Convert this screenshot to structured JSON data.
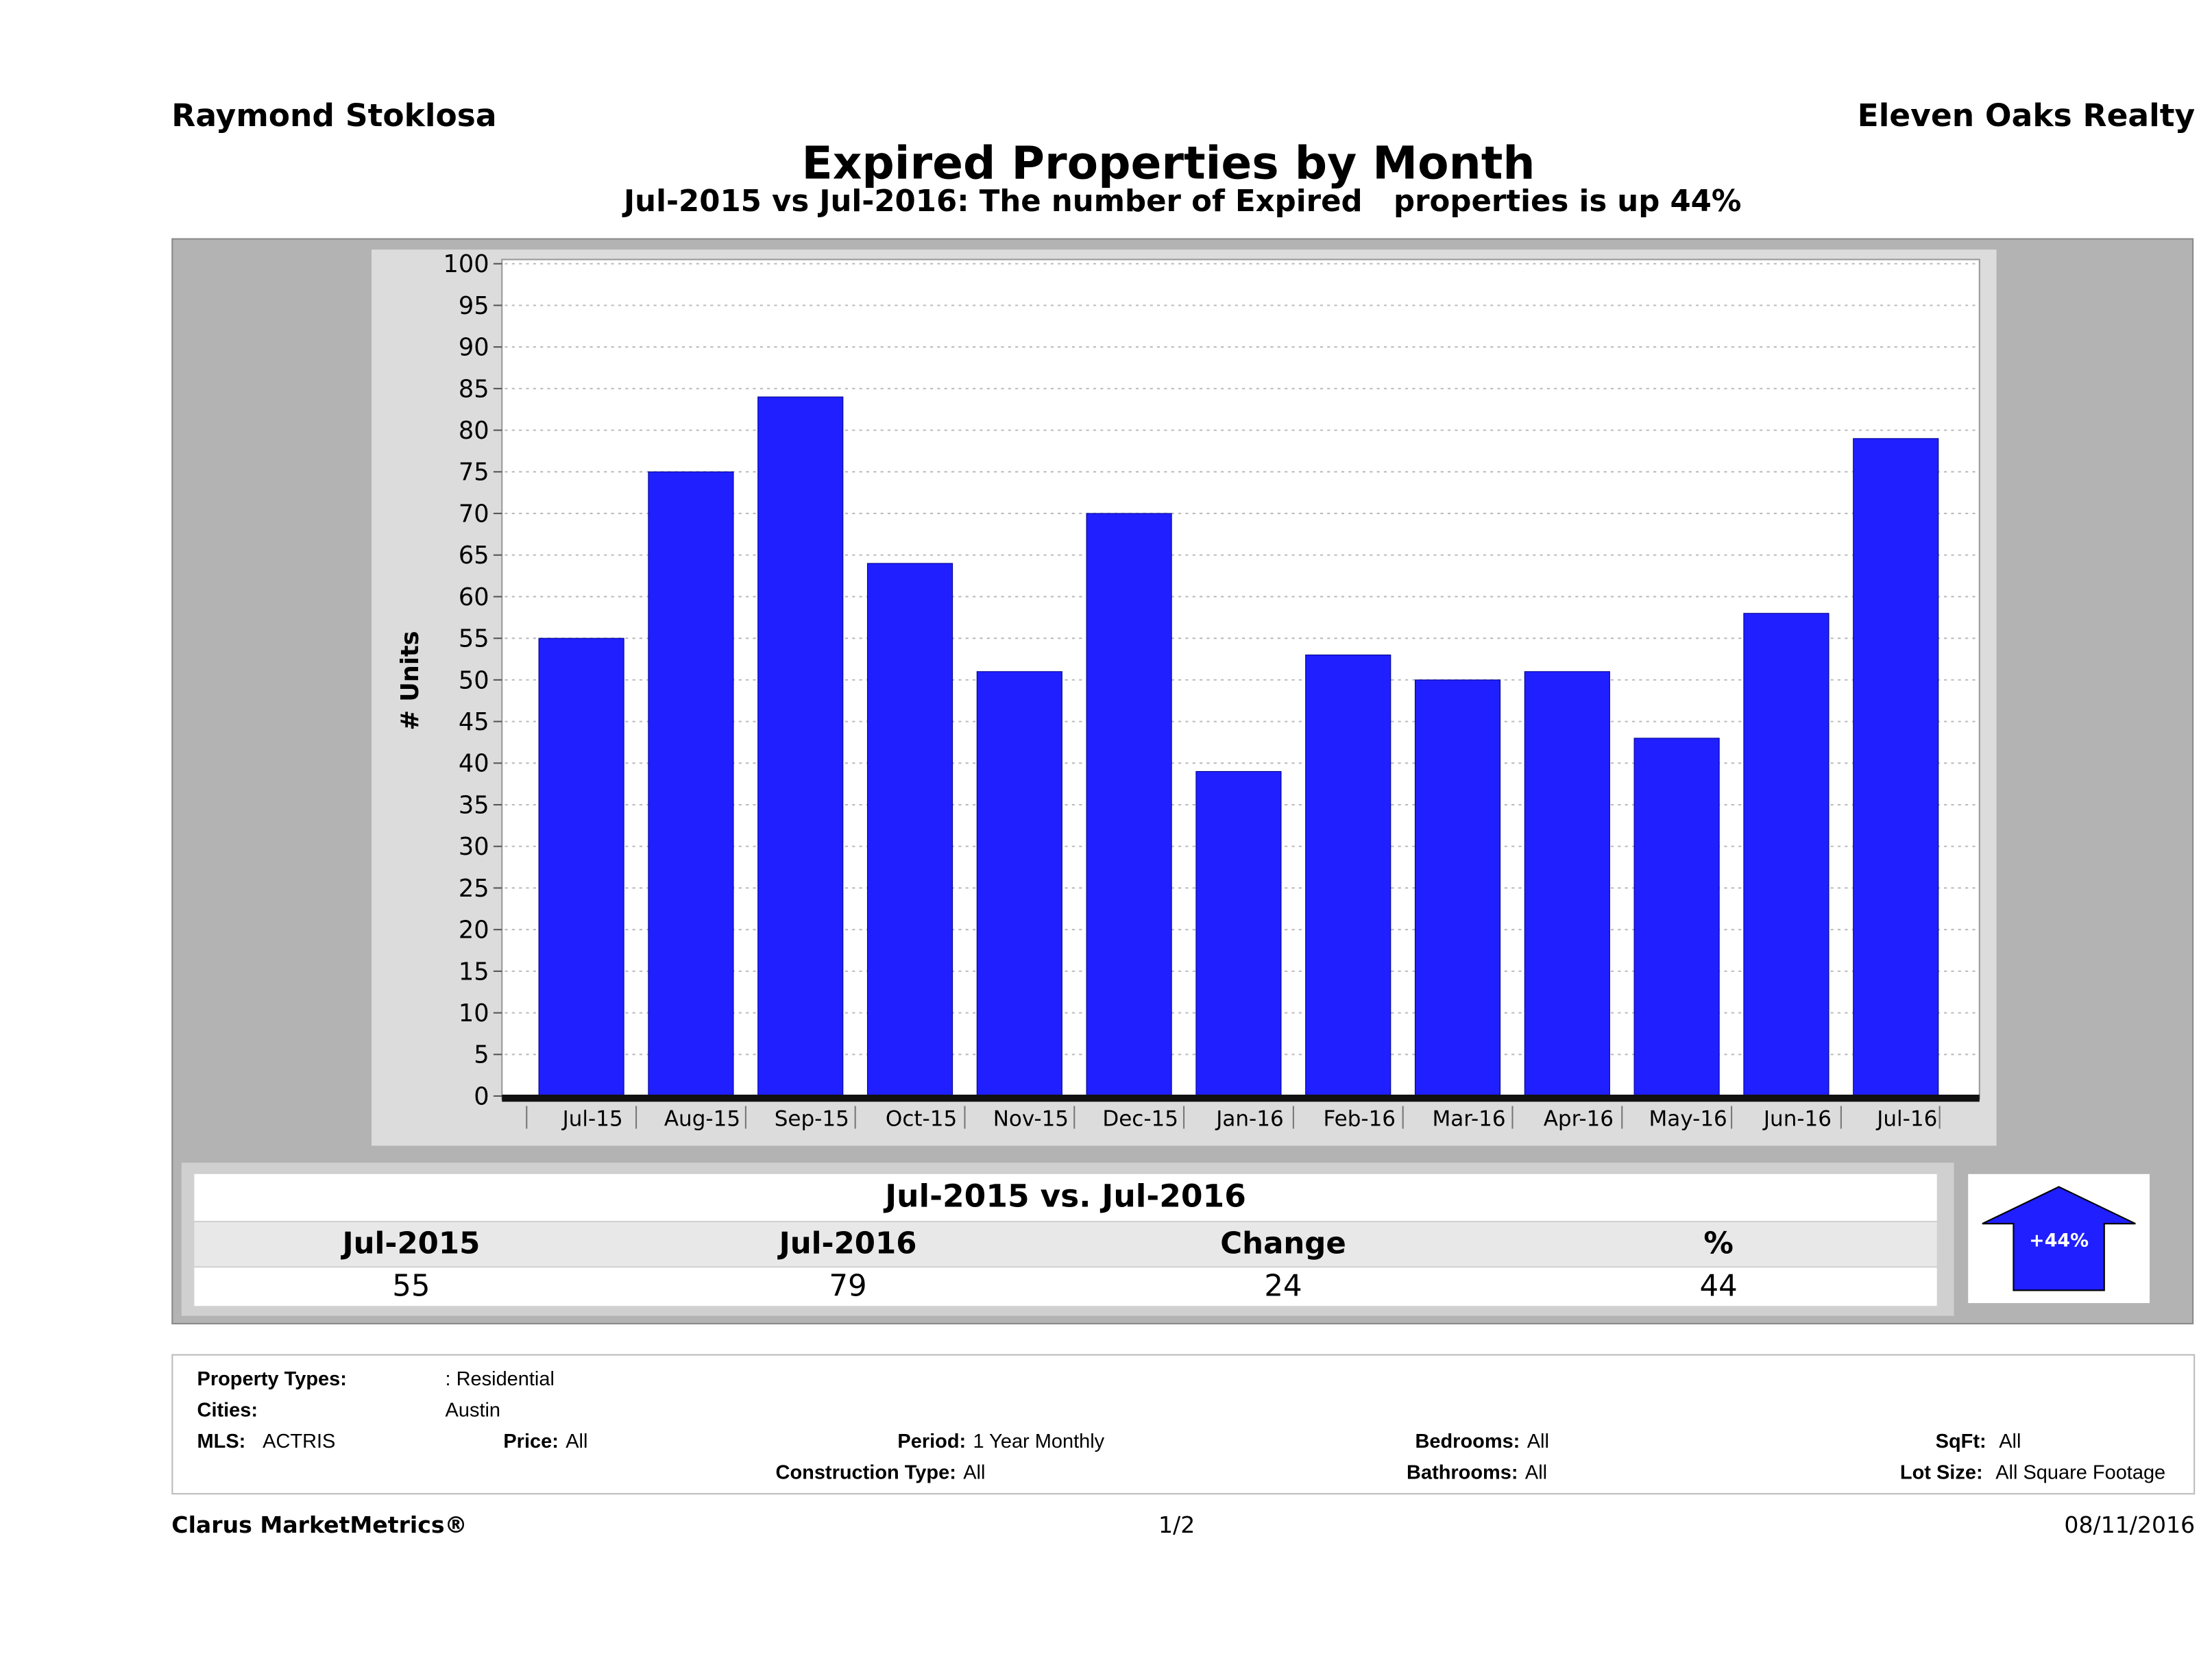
{
  "header": {
    "agent": "Raymond Stoklosa",
    "broker": "Eleven Oaks Realty",
    "title": "Expired Properties by Month",
    "subtitle": "Jul-2015 vs Jul-2016: The number of Expired   properties is up 44%"
  },
  "chart_data": {
    "type": "bar",
    "ylabel": "# Units",
    "ylim": [
      0,
      100
    ],
    "yticks": [
      0,
      5,
      10,
      15,
      20,
      25,
      30,
      35,
      40,
      45,
      50,
      55,
      60,
      65,
      70,
      75,
      80,
      85,
      90,
      95,
      100
    ],
    "grid": true,
    "bar_color": "#1f1fff",
    "categories": [
      "Jul-15",
      "Aug-15",
      "Sep-15",
      "Oct-15",
      "Nov-15",
      "Dec-15",
      "Jan-16",
      "Feb-16",
      "Mar-16",
      "Apr-16",
      "May-16",
      "Jun-16",
      "Jul-16"
    ],
    "values": [
      55,
      75,
      84,
      64,
      51,
      70,
      39,
      53,
      50,
      51,
      43,
      58,
      79
    ]
  },
  "summary": {
    "title": "Jul-2015 vs. Jul-2016",
    "headers": [
      "Jul-2015",
      "Jul-2016",
      "Change",
      "%"
    ],
    "values": [
      "55",
      "79",
      "24",
      "44"
    ],
    "badge": "+44%",
    "badge_icon": "up-arrow-icon"
  },
  "filters": {
    "property_types_label": "Property Types:",
    "property_types": ": Residential",
    "cities_label": "Cities:",
    "cities": "Austin",
    "mls_label": "MLS:",
    "mls": "ACTRIS",
    "price_label": "Price:",
    "price": "All",
    "period_label": "Period:",
    "period": "1 Year Monthly",
    "bedrooms_label": "Bedrooms:",
    "bedrooms": "All",
    "sqft_label": "SqFt:",
    "sqft": "All",
    "construction_label": "Construction Type:",
    "construction": "All",
    "bathrooms_label": "Bathrooms:",
    "bathrooms": "All",
    "lot_label": "Lot Size:",
    "lot": "All Square Footage"
  },
  "footer": {
    "brand": "Clarus MarketMetrics®",
    "page": "1/2",
    "date": "08/11/2016"
  }
}
